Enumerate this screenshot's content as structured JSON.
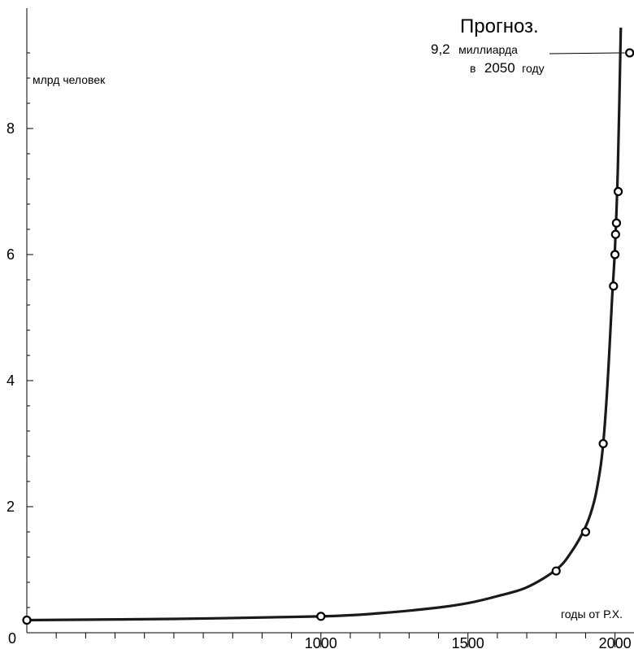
{
  "chart_data": {
    "type": "line",
    "title": "",
    "xlabel": "годы от Р.Х.",
    "ylabel": "млрд человек",
    "xlim": [
      0,
      2050
    ],
    "ylim": [
      0,
      9.6
    ],
    "origin_label": "0",
    "x_ticks": [
      1000,
      1500,
      2000
    ],
    "x_tick_labels": [
      "1000",
      "1500",
      "2000"
    ],
    "y_ticks": [
      2,
      4,
      6,
      8
    ],
    "y_tick_labels": [
      "2",
      "4",
      "6",
      "8"
    ],
    "grid": false,
    "legend": "none",
    "series": [
      {
        "type": "scatter",
        "points": [
          {
            "x": 0,
            "y": 0.2
          },
          {
            "x": 1000,
            "y": 0.26
          },
          {
            "x": 1800,
            "y": 0.98
          },
          {
            "x": 1900,
            "y": 1.6
          },
          {
            "x": 1960,
            "y": 3.0
          },
          {
            "x": 1995,
            "y": 5.5
          },
          {
            "x": 2000,
            "y": 6.0
          },
          {
            "x": 2002,
            "y": 6.32
          },
          {
            "x": 2005,
            "y": 6.5
          },
          {
            "x": 2011,
            "y": 7.0
          },
          {
            "x": 2050,
            "y": 9.2
          }
        ]
      },
      {
        "type": "line",
        "points": [
          {
            "x": 0,
            "y": 0.2
          },
          {
            "x": 500,
            "y": 0.22
          },
          {
            "x": 1000,
            "y": 0.26
          },
          {
            "x": 1200,
            "y": 0.31
          },
          {
            "x": 1400,
            "y": 0.4
          },
          {
            "x": 1500,
            "y": 0.47
          },
          {
            "x": 1600,
            "y": 0.58
          },
          {
            "x": 1700,
            "y": 0.72
          },
          {
            "x": 1800,
            "y": 1.0
          },
          {
            "x": 1850,
            "y": 1.27
          },
          {
            "x": 1900,
            "y": 1.68
          },
          {
            "x": 1930,
            "y": 2.1
          },
          {
            "x": 1950,
            "y": 2.6
          },
          {
            "x": 1960,
            "y": 3.0
          },
          {
            "x": 1970,
            "y": 3.6
          },
          {
            "x": 1980,
            "y": 4.4
          },
          {
            "x": 1990,
            "y": 5.3
          },
          {
            "x": 2000,
            "y": 6.1
          },
          {
            "x": 2010,
            "y": 7.4
          },
          {
            "x": 2020,
            "y": 9.6
          }
        ]
      }
    ],
    "annotation": {
      "title": "Прогноз.",
      "value": "9,2",
      "unit": "миллиарда",
      "prefix": "в",
      "year": "2050",
      "suffix": "году",
      "target": {
        "x": 2050,
        "y": 9.2
      }
    }
  }
}
